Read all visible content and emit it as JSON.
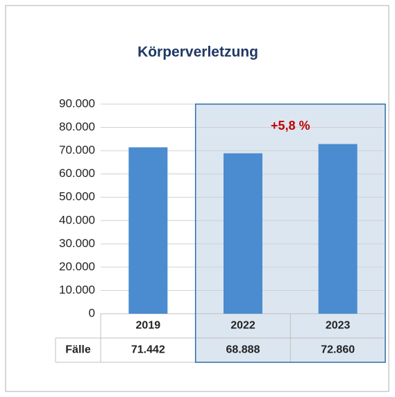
{
  "chart_data": {
    "type": "bar",
    "title": "Körperverletzung",
    "categories": [
      "2019",
      "2022",
      "2023"
    ],
    "values": [
      71442,
      68888,
      72860
    ],
    "value_labels": [
      "71.442",
      "68.888",
      "72.860"
    ],
    "table_row_label": "Fälle",
    "annotation": "+5,8 %",
    "color": "#4a8ccf",
    "ylim": [
      0,
      90000
    ],
    "yticks": [
      0,
      {
        "value": 10000,
        "label": "10.000"
      },
      {
        "value": 20000,
        "label": "20.000"
      },
      {
        "value": 30000,
        "label": "30.000"
      },
      {
        "value": 40000,
        "label": "40.000"
      },
      {
        "value": 50000,
        "label": "50.000"
      },
      {
        "value": 60000,
        "label": "60.000"
      },
      {
        "value": 70000,
        "label": "70.000"
      },
      {
        "value": 80000,
        "label": "80.000"
      },
      {
        "value": 90000,
        "label": "90.000"
      }
    ],
    "grid": true
  }
}
